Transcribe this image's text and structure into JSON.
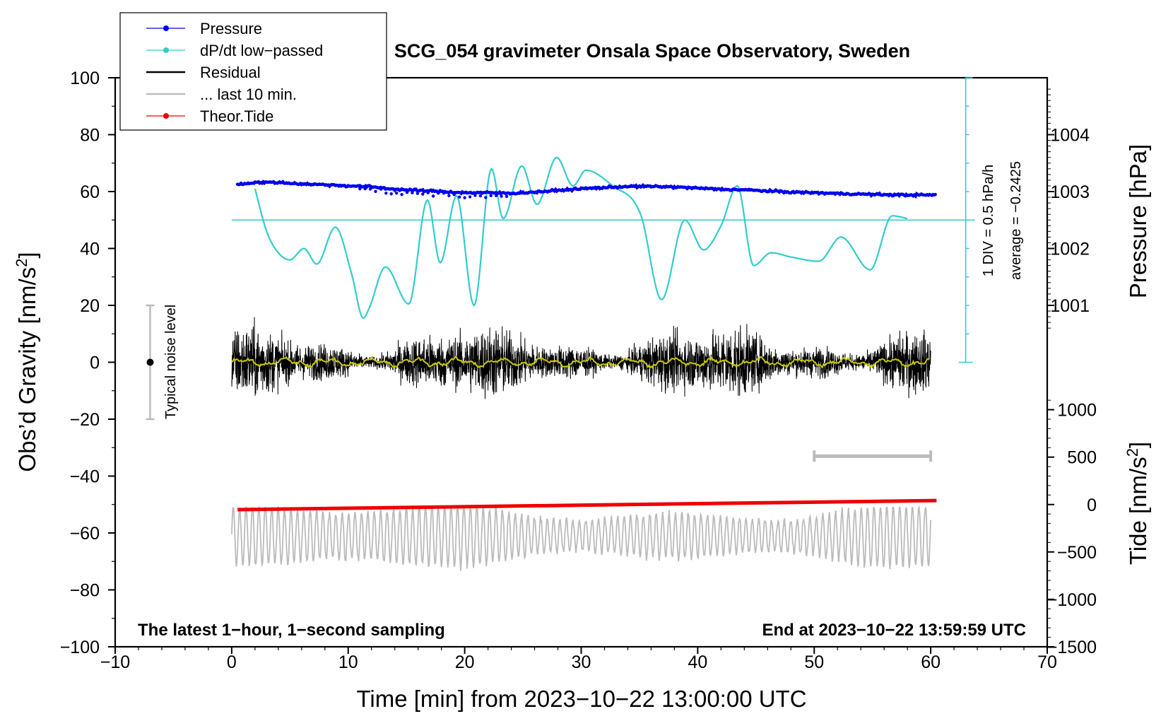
{
  "chart_data": {
    "type": "line",
    "title": "SCG_054 gravimeter Onsala Space Observatory, Sweden",
    "xlabel": "Time [min] from 2023−10−22 13:00:00 UTC",
    "ylabel_left": "Obs’d Gravity [nm/s²]",
    "ylabel_pressure": "Pressure [hPa]",
    "ylabel_tide": "Tide [nm/s²]",
    "xlim": [
      -10,
      70
    ],
    "ylim": [
      -100,
      100
    ],
    "x_ticks": [
      "−10",
      "0",
      "10",
      "20",
      "30",
      "40",
      "50",
      "60",
      "70"
    ],
    "x_tick_values": [
      -10,
      0,
      10,
      20,
      30,
      40,
      50,
      60,
      70
    ],
    "y_ticks": [
      "100",
      "80",
      "60",
      "40",
      "20",
      "0",
      "−20",
      "−40",
      "−60",
      "−80",
      "−100"
    ],
    "y_tick_values": [
      100,
      80,
      60,
      40,
      20,
      0,
      -20,
      -40,
      -60,
      -80,
      -100
    ],
    "pressure_axis": {
      "ticks": [
        "1001",
        "1002",
        "1003",
        "1004"
      ],
      "tick_values": [
        1001,
        1002,
        1003,
        1004
      ],
      "left_axis_at_1003": 60,
      "left_units_per_hPa": 20
    },
    "tide_axis": {
      "ticks": [
        "1000",
        "500",
        "0",
        "−500",
        "−1000",
        "−1500"
      ],
      "tick_values": [
        1000,
        500,
        0,
        -500,
        -1000,
        -1500
      ],
      "left_axis_at_0": -50,
      "left_units_per_1000": 33.33
    },
    "legend": [
      {
        "label": "Pressure",
        "color": "#0000ee",
        "marker": true
      },
      {
        "label": "dP/dt low−passed",
        "color": "#33cccc",
        "marker": true
      },
      {
        "label": "Residual",
        "color": "#000000",
        "marker": false
      },
      {
        "label": "... last 10 min.",
        "color": "#bbbbbb",
        "marker": false
      },
      {
        "label": "Theor.Tide",
        "color": "#ee0000",
        "marker": true
      }
    ],
    "series": [
      {
        "name": "Pressure",
        "color": "#0000ee",
        "x": [
          0.5,
          2,
          4,
          6,
          8,
          10,
          12,
          14,
          16,
          18,
          20,
          22,
          24,
          26,
          28,
          30,
          32,
          34,
          36,
          38,
          40,
          42,
          44,
          46,
          48,
          50,
          52,
          54,
          56,
          58,
          60.5
        ],
        "y": [
          62.5,
          63.2,
          63.2,
          62.7,
          62.4,
          62.0,
          61.7,
          60.8,
          60.4,
          60.0,
          59.6,
          59.6,
          59.4,
          59.8,
          60.4,
          61.0,
          61.4,
          61.8,
          61.8,
          61.6,
          61.2,
          60.8,
          60.6,
          60.2,
          59.8,
          59.6,
          59.3,
          59.1,
          58.9,
          58.8,
          58.8
        ]
      },
      {
        "name": "dP/dt low−passed",
        "color": "#33cccc",
        "baseline": 50,
        "x": [
          2,
          3,
          4,
          5,
          6.2,
          7.3,
          8.9,
          10.3,
          11.3,
          11.8,
          13.2,
          15.2,
          16.8,
          17.9,
          19.3,
          20.8,
          22.3,
          23.3,
          24.9,
          26.2,
          27.9,
          29.3,
          30.4,
          32.7,
          35.1,
          36.9,
          38.9,
          40.5,
          42,
          43.4,
          44.8,
          46.3,
          48,
          50.4,
          52.3,
          54.8,
          56.7,
          58
        ],
        "y": [
          61,
          46,
          38.5,
          36,
          40,
          34.5,
          47.5,
          31,
          15.5,
          19,
          33.5,
          20.5,
          57,
          35,
          58.5,
          20,
          68,
          50.5,
          69,
          55.5,
          72,
          62,
          67.5,
          62,
          52,
          22,
          50,
          39.5,
          48,
          62,
          34,
          38.5,
          37,
          35.5,
          44,
          32.5,
          51.5,
          50.5
        ]
      },
      {
        "name": "Residual",
        "color": "#000000",
        "x_range": [
          0,
          60
        ],
        "center": 0,
        "typical_amplitude": 10,
        "min": -22,
        "max": 22
      },
      {
        "name": "... last 10 min.",
        "color": "#bbbbbb",
        "x_range": [
          0,
          60
        ],
        "center": -61,
        "min": -78,
        "max": -51
      },
      {
        "name": "Theor.Tide",
        "color": "#ee0000",
        "x": [
          0.5,
          60.5
        ],
        "y": [
          -51.8,
          -48.6
        ]
      }
    ],
    "noise_bar": {
      "label": "Typical noise level",
      "x": -7,
      "center": 0,
      "half_width": 20
    },
    "grey_bar": {
      "x": [
        50,
        60
      ],
      "y": -33
    },
    "dpdt_scale": {
      "label_div": "1 DIV = 0.5 hPa/h",
      "label_avg": "average = −0.2425",
      "x": 63,
      "y_top": 100,
      "y_bottom": 0
    },
    "annotations": {
      "bottom_left": "The latest 1−hour, 1−second sampling",
      "bottom_right": "End at 2023−10−22 13:59:59 UTC"
    }
  }
}
